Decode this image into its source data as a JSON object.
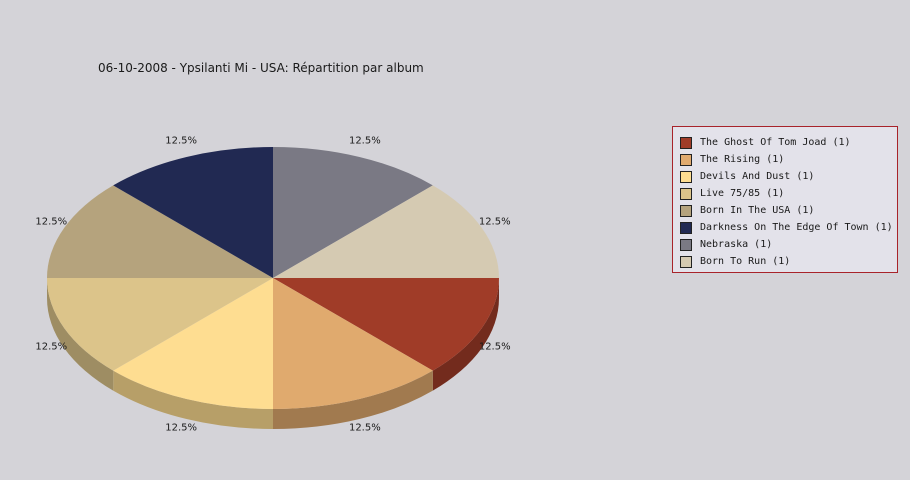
{
  "chart_data": {
    "type": "pie",
    "title": "06-10-2008 - Ypsilanti Mi - USA:  Répartition par album",
    "slices": [
      {
        "name": "The Ghost Of Tom Joad (1)",
        "value": 1,
        "percent_label": "12.5%",
        "color": "#a03c28"
      },
      {
        "name": "The Rising (1)",
        "value": 1,
        "percent_label": "12.5%",
        "color": "#e0aa6e"
      },
      {
        "name": "Devils And Dust (1)",
        "value": 1,
        "percent_label": "12.5%",
        "color": "#fedd91"
      },
      {
        "name": "Live 75/85 (1)",
        "value": 1,
        "percent_label": "12.5%",
        "color": "#dcc48a"
      },
      {
        "name": "Born In The USA (1)",
        "value": 1,
        "percent_label": "12.5%",
        "color": "#b5a37d"
      },
      {
        "name": "Darkness On The Edge Of Town (1)",
        "value": 1,
        "percent_label": "12.5%",
        "color": "#212952"
      },
      {
        "name": "Nebraska (1)",
        "value": 1,
        "percent_label": "12.5%",
        "color": "#7a7984"
      },
      {
        "name": "Born To Run (1)",
        "value": 1,
        "percent_label": "12.5%",
        "color": "#d5cab2"
      }
    ],
    "legend_position": "right"
  }
}
